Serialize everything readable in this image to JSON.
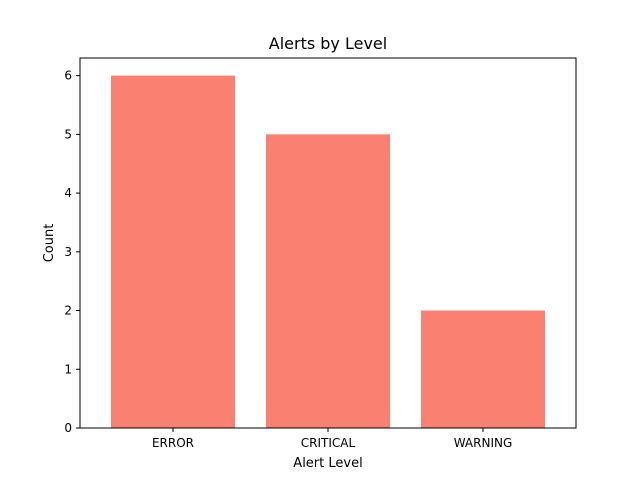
{
  "chart_data": {
    "type": "bar",
    "title": "Alerts by Level",
    "xlabel": "Alert Level",
    "ylabel": "Count",
    "categories": [
      "ERROR",
      "CRITICAL",
      "WARNING"
    ],
    "values": [
      6,
      5,
      2
    ],
    "ylim": [
      0,
      6.3
    ],
    "yticks": [
      0,
      1,
      2,
      3,
      4,
      5,
      6
    ],
    "grid": false,
    "bar_color": "#fa8072"
  }
}
